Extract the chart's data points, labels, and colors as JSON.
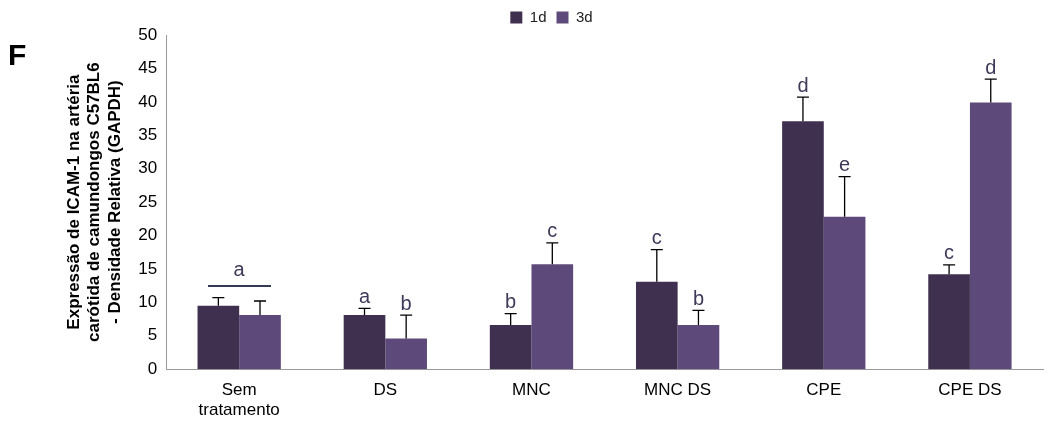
{
  "chart_data": {
    "type": "bar",
    "ylabel": "Expressão de ICAM-1 na artéria carótida de camundongos C57BL6 - Densidade Relativa (GAPDH)",
    "categories": [
      "Sem tratamento",
      "DS",
      "MNC",
      "MNC DS",
      "CPE",
      "CPE DS"
    ],
    "series": [
      {
        "name": "1d",
        "color": "#40304f",
        "values": [
          9.5,
          8.1,
          6.6,
          13.1,
          37.1,
          14.2
        ],
        "errors": [
          1.2,
          1.0,
          1.7,
          4.8,
          3.6,
          1.4
        ],
        "value_labels": [
          "a",
          "a",
          "b",
          "c",
          "d",
          "c"
        ]
      },
      {
        "name": "3d",
        "color": "#5e4a7a",
        "values": [
          8.1,
          4.6,
          15.7,
          6.6,
          22.8,
          39.9
        ],
        "errors": [
          2.1,
          3.5,
          3.2,
          2.2,
          6.0,
          3.5
        ],
        "value_labels": [
          null,
          "b",
          "c",
          "b",
          "e",
          "d"
        ]
      }
    ],
    "ylim": [
      0,
      50
    ],
    "yticks": [
      0,
      5,
      10,
      15,
      20,
      25,
      30,
      35,
      40,
      45,
      50
    ],
    "grid": false,
    "legend": "top",
    "annotations": [
      "F"
    ]
  }
}
